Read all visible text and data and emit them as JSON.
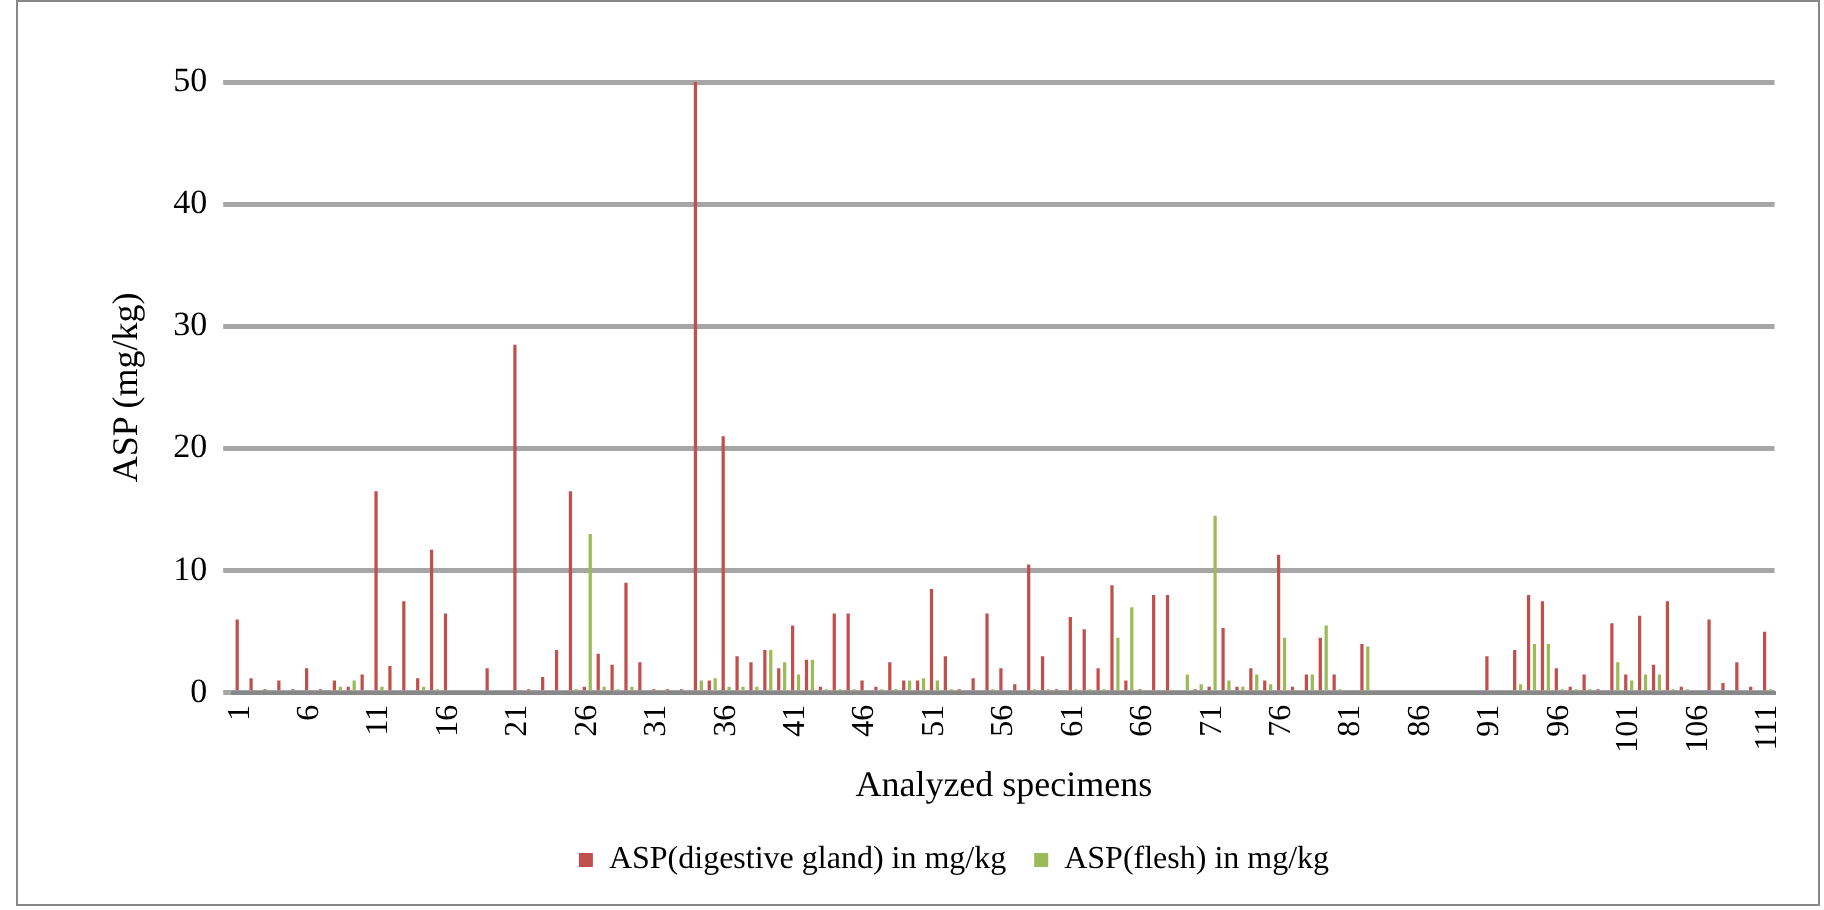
{
  "chart_data": {
    "type": "bar",
    "xlabel": "Analyzed specimens",
    "ylabel": "ASP (mg/kg)",
    "categories": [
      "1",
      null,
      null,
      null,
      null,
      "6",
      null,
      null,
      null,
      null,
      "11",
      null,
      null,
      null,
      null,
      "16",
      null,
      null,
      null,
      null,
      "21",
      null,
      null,
      null,
      null,
      "26",
      null,
      null,
      null,
      null,
      "31",
      null,
      null,
      null,
      null,
      "36",
      null,
      null,
      null,
      null,
      "41",
      null,
      null,
      null,
      null,
      "46",
      null,
      null,
      null,
      null,
      "51",
      null,
      null,
      null,
      null,
      "56",
      null,
      null,
      null,
      null,
      "61",
      null,
      null,
      null,
      null,
      "66",
      null,
      null,
      null,
      null,
      "71",
      null,
      null,
      null,
      null,
      "76",
      null,
      null,
      null,
      null,
      "81",
      null,
      null,
      null,
      null,
      "86",
      null,
      null,
      null,
      null,
      "91",
      null,
      null,
      null,
      null,
      "96",
      null,
      null,
      null,
      null,
      "101",
      null,
      null,
      null,
      null,
      "106",
      null,
      null,
      null,
      null,
      "111"
    ],
    "series": [
      {
        "name": "ASP(digestive gland) in mg/kg",
        "color": "#c0504d",
        "values": [
          6,
          1.2,
          0.3,
          1,
          0.3,
          2,
          0.3,
          1,
          0.5,
          1.5,
          16.5,
          2.2,
          7.5,
          1.2,
          11.7,
          6.5,
          0,
          0,
          2,
          0,
          28.5,
          0.3,
          1.3,
          3.5,
          16.5,
          0.5,
          3.2,
          2.3,
          9,
          2.5,
          0.3,
          0.3,
          0.3,
          50,
          1,
          21,
          3,
          2.5,
          3.5,
          2,
          5.5,
          2.7,
          0.5,
          6.5,
          6.5,
          1,
          0.5,
          2.5,
          1,
          1,
          8.5,
          3,
          0.3,
          1.2,
          6.5,
          2,
          0.7,
          10.5,
          3,
          0.3,
          6.2,
          5.2,
          2,
          8.8,
          1,
          0.3,
          8,
          8,
          null,
          0.3,
          0.5,
          5.3,
          0.5,
          2,
          1,
          11.3,
          0.5,
          1.5,
          4.5,
          1.5,
          0,
          4,
          0,
          0,
          0,
          0,
          0,
          0,
          0,
          0,
          3,
          0,
          3.5,
          8,
          7.5,
          2,
          0.5,
          1.5,
          0.3,
          5.7,
          1.5,
          6.3,
          2.3,
          7.5,
          0.5,
          0.2,
          6,
          0.8,
          2.5,
          0.5,
          5
        ]
      },
      {
        "name": "ASP(flesh) in mg/kg",
        "color": "#9bbb59",
        "values": [
          0.2,
          0.2,
          0.2,
          0.2,
          0.2,
          0.2,
          0.2,
          0.5,
          1,
          0.2,
          0.5,
          0.2,
          0.2,
          0.5,
          0.3,
          0.2,
          0,
          0,
          0.2,
          0,
          0.2,
          0.2,
          0.2,
          0.2,
          0.3,
          13,
          0.5,
          0.3,
          0.5,
          0.2,
          0.2,
          0.2,
          0.2,
          1,
          1.2,
          0.5,
          0.5,
          0.5,
          3.5,
          2.5,
          1.5,
          2.7,
          0.3,
          0.3,
          0.3,
          0.2,
          0.3,
          0.3,
          1,
          1.2,
          1,
          0.3,
          0.2,
          0.2,
          0.3,
          0.2,
          0.2,
          0.3,
          0.3,
          0.2,
          0.3,
          0.3,
          0.3,
          4.5,
          7,
          0.2,
          0.2,
          0.2,
          1.5,
          0.7,
          14.5,
          1,
          0.5,
          1.5,
          0.7,
          4.5,
          null,
          1.5,
          5.5,
          0.3,
          0,
          3.8,
          0,
          0,
          0,
          0,
          0,
          0,
          0,
          0,
          0.2,
          0,
          0.7,
          4,
          4,
          0.3,
          0.3,
          0.3,
          0.2,
          2.5,
          1,
          1.5,
          1.5,
          0.3,
          0.3,
          0.2,
          0.2,
          0.2,
          0.2,
          0.2,
          0.3
        ]
      }
    ],
    "ylim": [
      0,
      50
    ],
    "yticks": [
      0,
      10,
      20,
      30,
      40,
      50
    ],
    "grid": "y",
    "legend": "bottom"
  }
}
